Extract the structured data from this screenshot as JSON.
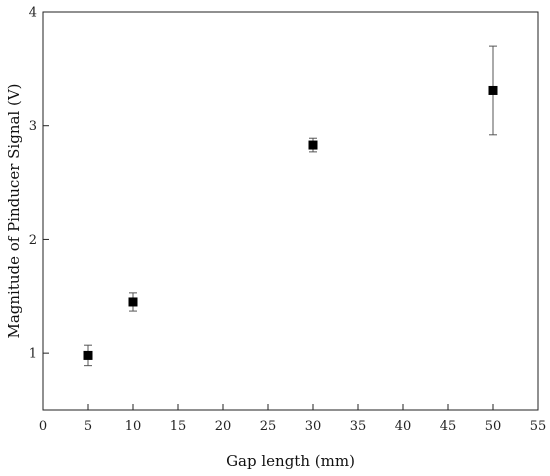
{
  "chart_data": {
    "type": "scatter",
    "title": "",
    "xlabel": "Gap length (mm)",
    "ylabel": "Magnitude of Pinducer Signal (V)",
    "xlim": [
      0,
      55
    ],
    "ylim": [
      0.5,
      4
    ],
    "xticks": [
      0,
      5,
      10,
      15,
      20,
      25,
      30,
      35,
      40,
      45,
      50,
      55
    ],
    "yticks": [
      1,
      2,
      3,
      4
    ],
    "grid": false,
    "legend": "none",
    "marker": "square",
    "marker_color": "#000000",
    "error_bar_color": "#555555",
    "points": [
      {
        "x": 5,
        "y": 0.98,
        "err": 0.09
      },
      {
        "x": 10,
        "y": 1.45,
        "err": 0.08
      },
      {
        "x": 30,
        "y": 2.83,
        "err": 0.06
      },
      {
        "x": 50,
        "y": 3.31,
        "err": 0.39
      }
    ]
  }
}
